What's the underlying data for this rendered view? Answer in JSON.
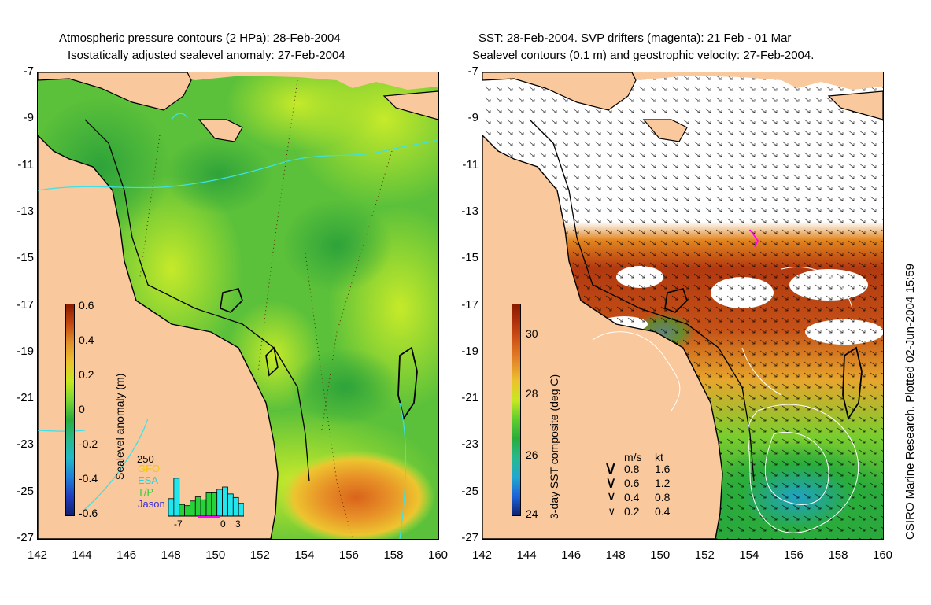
{
  "left_panel": {
    "title_line1": "Atmospheric pressure contours (2 HPa): 28-Feb-2004",
    "title_line2": "Isostatically adjusted sealevel anomaly: 27-Feb-2004",
    "colorbar": {
      "label": "Sealevel anomaly (m)",
      "ticks": [
        "0.6",
        "0.4",
        "0.2",
        "0",
        "-0.2",
        "-0.4",
        "-0.6"
      ],
      "colors": [
        "#8b1a00",
        "#c4470f",
        "#e0902a",
        "#ecc22d",
        "#c6e81f",
        "#79d531",
        "#2aac3b",
        "#27b989",
        "#20b9c6",
        "#1f7fd8",
        "#1f3dbd",
        "#102070"
      ]
    },
    "inset": {
      "max_label": "250",
      "legend": [
        {
          "name": "GFO",
          "color": "#f2c800"
        },
        {
          "name": "ESA",
          "color": "#22d3e0"
        },
        {
          "name": "T/P",
          "color": "#27d13a"
        },
        {
          "name": "Jason",
          "color": "#3c2fd8"
        }
      ],
      "xticks": [
        "-7",
        "0",
        "3"
      ],
      "bars": [
        0.3,
        0.65,
        0.2,
        0.18,
        0.26,
        0.33,
        0.28,
        0.4,
        0.4,
        0.46,
        0.5,
        0.38,
        0.32,
        0.22
      ]
    }
  },
  "right_panel": {
    "title_line1": "SST: 28-Feb-2004. SVP drifters (magenta): 21 Feb - 01 Mar",
    "title_line2": "Sealevel contours (0.1 m) and geostrophic velocity: 27-Feb-2004.",
    "colorbar": {
      "label": "3-day SST composite (deg C)",
      "ticks": [
        "30",
        "28",
        "26",
        "24"
      ],
      "colors": [
        "#8b1a00",
        "#b3330c",
        "#d45a1a",
        "#e58a2a",
        "#ecc22d",
        "#c6e81f",
        "#5fcd2e",
        "#2aac3b",
        "#27b98f",
        "#20a8cf",
        "#1f63d8",
        "#102070"
      ]
    },
    "velocity_legend": {
      "header_ms": "m/s",
      "header_kt": "kt",
      "rows": [
        {
          "ms": "0.8",
          "kt": "1.6"
        },
        {
          "ms": "0.6",
          "kt": "1.2"
        },
        {
          "ms": "0.4",
          "kt": "0.8"
        },
        {
          "ms": "0.2",
          "kt": "0.4"
        }
      ]
    }
  },
  "axes": {
    "x_ticks": [
      "142",
      "144",
      "146",
      "148",
      "150",
      "152",
      "154",
      "156",
      "158",
      "160"
    ],
    "y_ticks": [
      "-7",
      "-9",
      "-11",
      "-13",
      "-15",
      "-17",
      "-19",
      "-21",
      "-23",
      "-25",
      "-27"
    ]
  },
  "credit": "CSIRO Marine Research. Plotted 02-Jun-2004 15:59",
  "colors": {
    "land": "#f9c89c",
    "ocean_green": "#46b83a",
    "ocean_light": "#a9e035",
    "anomaly_high": "#e08a22",
    "contour": "#3fe0e6"
  }
}
